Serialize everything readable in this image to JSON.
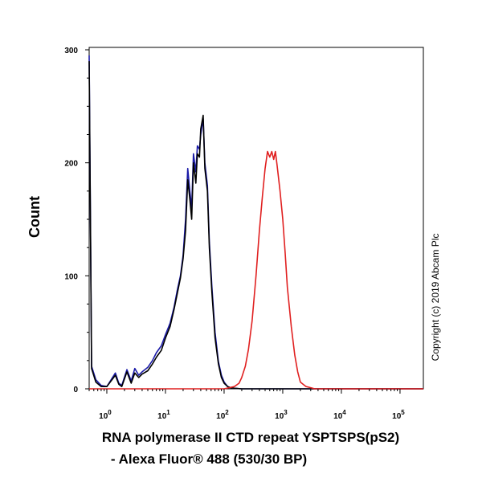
{
  "chart_data": {
    "type": "line",
    "title": "",
    "ylabel": "Count",
    "xlabel_line1": "RNA polymerase II CTD repeat YSPTSPS(pS2)",
    "xlabel_line2": "- Alexa Fluor® 488 (530/30 BP)",
    "x_scale": "log",
    "xlim": [
      0.5,
      250000
    ],
    "ylim": [
      0,
      300
    ],
    "y_ticks": [
      0,
      100,
      200,
      300
    ],
    "y_tick_labels": [
      "0",
      "100",
      "200",
      "300"
    ],
    "x_ticks": [
      1,
      10,
      100,
      1000,
      10000,
      100000
    ],
    "x_tick_labels": [
      {
        "base": "10",
        "exp": "0"
      },
      {
        "base": "10",
        "exp": "1"
      },
      {
        "base": "10",
        "exp": "2"
      },
      {
        "base": "10",
        "exp": "3"
      },
      {
        "base": "10",
        "exp": "4"
      },
      {
        "base": "10",
        "exp": "5"
      }
    ],
    "copyright": "Copyright (c) 2019 Abcam Plc",
    "series": [
      {
        "color": "#1a1aa8",
        "x": [
          0.5,
          0.55,
          0.65,
          0.8,
          1.0,
          1.4,
          1.6,
          1.8,
          2.2,
          2.6,
          3.0,
          3.5,
          4.0,
          5.0,
          6.0,
          7.0,
          8.5,
          10.0,
          12.0,
          14.0,
          16.0,
          18.0,
          20.0,
          22.0,
          24.0,
          26.0,
          28.0,
          30.0,
          33.0,
          35.0,
          38.0,
          40.0,
          44.0,
          47.0,
          52.0,
          56.0,
          62.0,
          70.0,
          80.0,
          90.0,
          100.0,
          115.0,
          130.0,
          150.0,
          200.0,
          300.0,
          1000.0,
          250000.0
        ],
        "y": [
          295,
          20,
          8,
          3,
          2,
          14,
          5,
          3,
          17,
          7,
          18,
          12,
          15,
          19,
          25,
          32,
          38,
          48,
          58,
          72,
          88,
          100,
          118,
          150,
          195,
          175,
          160,
          208,
          192,
          215,
          212,
          225,
          239,
          200,
          180,
          130,
          90,
          50,
          24,
          12,
          6,
          2,
          1,
          0.5,
          0,
          0,
          0,
          0
        ]
      },
      {
        "color": "#000000",
        "x": [
          0.5,
          0.55,
          0.65,
          0.8,
          1.0,
          1.4,
          1.6,
          1.8,
          2.2,
          2.6,
          3.0,
          3.5,
          4.0,
          5.0,
          6.0,
          7.0,
          8.5,
          10.0,
          12.0,
          14.0,
          16.0,
          18.0,
          20.0,
          22.0,
          24.0,
          26.0,
          28.0,
          30.0,
          33.0,
          35.0,
          38.0,
          40.0,
          44.0,
          47.0,
          52.0,
          56.0,
          62.0,
          70.0,
          80.0,
          90.0,
          100.0,
          115.0,
          130.0,
          150.0,
          200.0,
          300.0,
          1000.0,
          250000.0
        ],
        "y": [
          290,
          18,
          6,
          2,
          2,
          12,
          4,
          2,
          15,
          5,
          14,
          10,
          13,
          16,
          22,
          28,
          34,
          45,
          55,
          70,
          85,
          98,
          115,
          140,
          185,
          168,
          150,
          200,
          182,
          208,
          205,
          230,
          242,
          195,
          175,
          125,
          85,
          45,
          22,
          10,
          5,
          2,
          1,
          0.5,
          0,
          0,
          0,
          0
        ]
      },
      {
        "color": "#e02020",
        "x": [
          0.5,
          100.0,
          150.0,
          180.0,
          200.0,
          230.0,
          260.0,
          300.0,
          350.0,
          400.0,
          450.0,
          500.0,
          550.0,
          600.0,
          650.0,
          700.0,
          750.0,
          800.0,
          900.0,
          1000.0,
          1100.0,
          1200.0,
          1400.0,
          1600.0,
          1800.0,
          2000.0,
          2500.0,
          3000.0,
          3500.0,
          250000.0
        ],
        "y": [
          0,
          0,
          2,
          5,
          10,
          20,
          35,
          60,
          100,
          140,
          170,
          195,
          210,
          205,
          210,
          203,
          210,
          198,
          175,
          150,
          120,
          90,
          55,
          30,
          15,
          6,
          2,
          1,
          0,
          0
        ]
      }
    ]
  }
}
